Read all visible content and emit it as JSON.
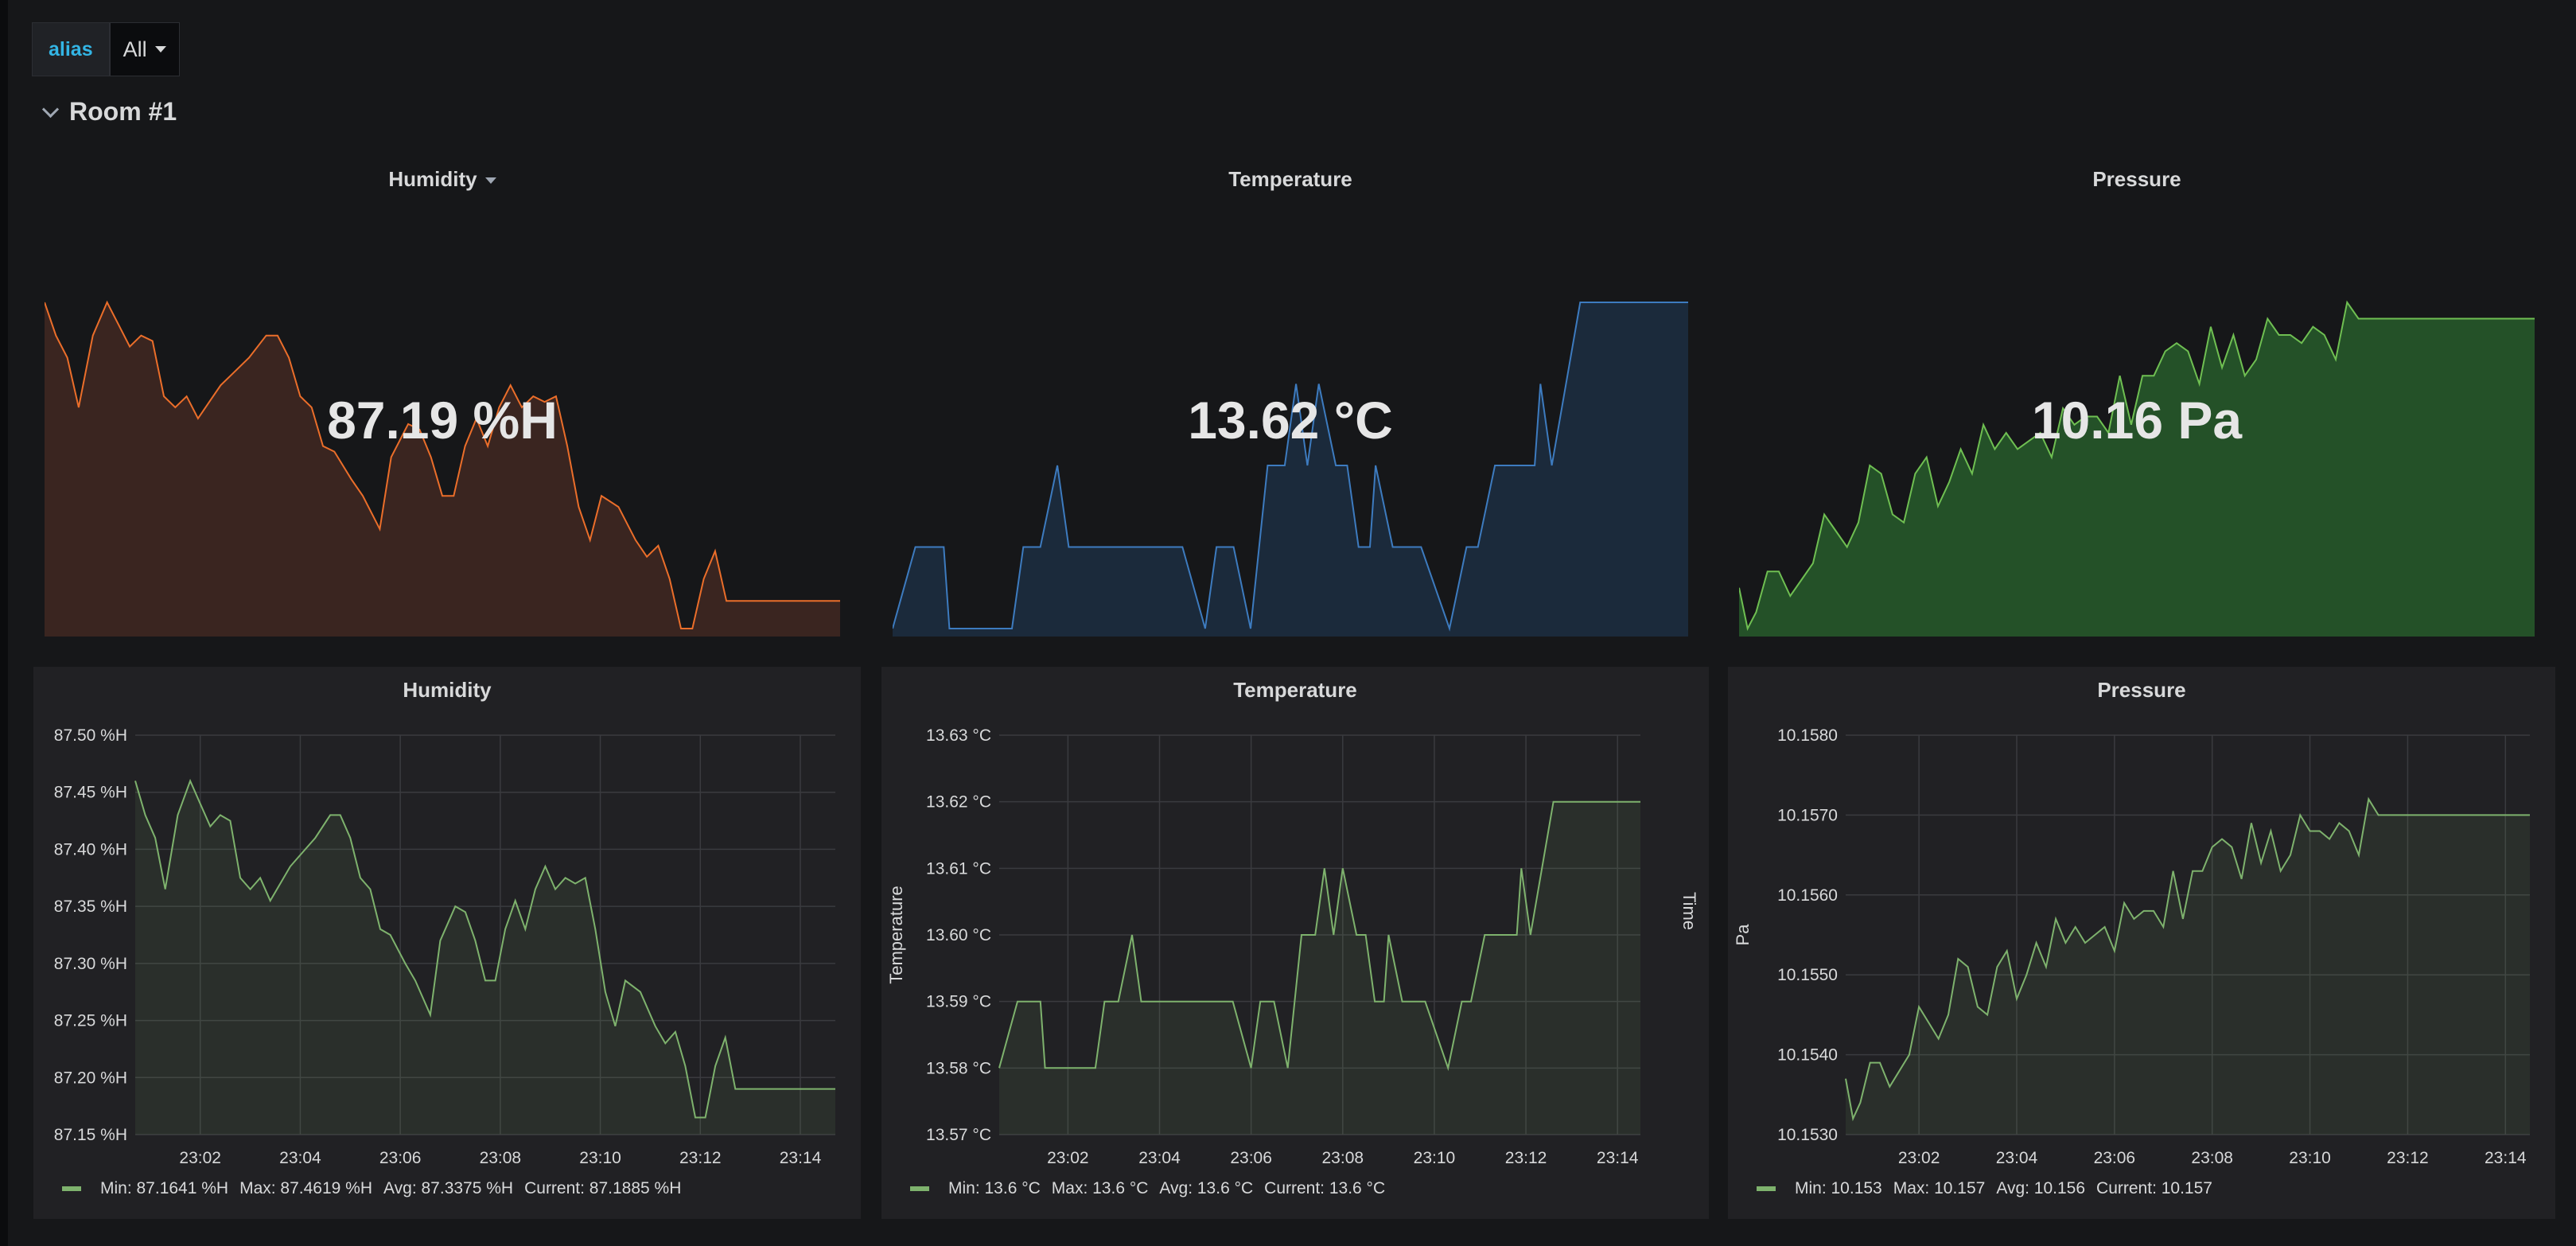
{
  "variables": {
    "label": "alias",
    "value": "All"
  },
  "row": {
    "title": "Room #1"
  },
  "stats": [
    {
      "title": "Humidity",
      "value": "87.19 %H"
    },
    {
      "title": "Temperature",
      "value": "13.62 °C"
    },
    {
      "title": "Pressure",
      "value": "10.16 Pa"
    }
  ],
  "graphs": [
    {
      "title": "Humidity",
      "legend": {
        "min": "Min: 87.1641 %H",
        "max": "Max: 87.4619 %H",
        "avg": "Avg: 87.3375 %H",
        "current": "Current: 87.1885 %H"
      }
    },
    {
      "title": "Temperature",
      "ylabel": "Temperature",
      "ylabel_right": "Time",
      "legend": {
        "min": "Min: 13.6 °C",
        "max": "Max: 13.6 °C",
        "avg": "Avg: 13.6 °C",
        "current": "Current: 13.6 °C"
      }
    },
    {
      "title": "Pressure",
      "ylabel": "Pa",
      "legend": {
        "min": "Min: 10.153",
        "max": "Max: 10.157",
        "avg": "Avg: 10.156",
        "current": "Current: 10.157"
      }
    }
  ],
  "colors": {
    "humidity_spark": "#eb6e2a",
    "humidity_fill": "#3a2520",
    "temperature_spark": "#3d7bbf",
    "temperature_fill": "#1b2a3b",
    "pressure_spark": "#6fbf52",
    "pressure_fill": "#245128",
    "series_line": "#7eb26d"
  },
  "chart_data": [
    {
      "type": "line",
      "title": "Humidity",
      "x_ticks": [
        "23:02",
        "23:04",
        "23:06",
        "23:08",
        "23:10",
        "23:12",
        "23:14"
      ],
      "y_ticks": [
        "87.15 %H",
        "87.20 %H",
        "87.25 %H",
        "87.30 %H",
        "87.35 %H",
        "87.40 %H",
        "87.45 %H",
        "87.50 %H"
      ],
      "ylim": [
        87.15,
        87.5
      ],
      "xlim": [
        0.7,
        14.7
      ],
      "grid": true,
      "series": [
        {
          "x": [
            0.7,
            0.9,
            1.1,
            1.3,
            1.55,
            1.8,
            2.0,
            2.2,
            2.4,
            2.6,
            2.8,
            3.0,
            3.2,
            3.4,
            3.6,
            3.8,
            4.0,
            4.3,
            4.6,
            4.8,
            5.0,
            5.2,
            5.4,
            5.6,
            5.8,
            6.1,
            6.3,
            6.6,
            6.8,
            7.1,
            7.3,
            7.5,
            7.7,
            7.9,
            8.1,
            8.3,
            8.5,
            8.7,
            8.9,
            9.1,
            9.3,
            9.5,
            9.7,
            9.9,
            10.1,
            10.3,
            10.5,
            10.8,
            11.1,
            11.3,
            11.5,
            11.7,
            11.9,
            12.1,
            12.3,
            12.5,
            12.7,
            12.9,
            13.1,
            13.3,
            13.5,
            13.7,
            13.9,
            14.1,
            14.3,
            14.5,
            14.7
          ],
          "y": [
            87.46,
            87.43,
            87.41,
            87.365,
            87.43,
            87.46,
            87.44,
            87.42,
            87.43,
            87.425,
            87.375,
            87.365,
            87.375,
            87.355,
            87.37,
            87.385,
            87.395,
            87.41,
            87.43,
            87.43,
            87.41,
            87.375,
            87.365,
            87.33,
            87.325,
            87.3,
            87.285,
            87.255,
            87.32,
            87.35,
            87.345,
            87.32,
            87.285,
            87.285,
            87.33,
            87.355,
            87.33,
            87.365,
            87.385,
            87.365,
            87.375,
            87.37,
            87.375,
            87.33,
            87.275,
            87.245,
            87.285,
            87.275,
            87.245,
            87.23,
            87.24,
            87.21,
            87.165,
            87.165,
            87.21,
            87.235,
            87.19,
            87.19,
            87.19,
            87.19,
            87.19,
            87.19,
            87.19,
            87.19,
            87.19,
            87.19,
            87.19
          ]
        }
      ],
      "legend_placement": "bottom-left"
    },
    {
      "type": "line",
      "title": "Temperature",
      "ylabel": "Temperature",
      "x_ticks": [
        "23:02",
        "23:04",
        "23:06",
        "23:08",
        "23:10",
        "23:12",
        "23:14"
      ],
      "y_ticks": [
        "13.57 °C",
        "13.58 °C",
        "13.59 °C",
        "13.60 °C",
        "13.61 °C",
        "13.62 °C",
        "13.63 °C"
      ],
      "ylim": [
        13.57,
        13.63
      ],
      "xlim": [
        0.5,
        14.5
      ],
      "grid": true,
      "series": [
        {
          "x": [
            0.5,
            0.7,
            0.9,
            1.4,
            1.5,
            1.9,
            2.6,
            2.8,
            3.1,
            3.4,
            3.6,
            3.8,
            4.0,
            4.3,
            4.6,
            5.0,
            5.3,
            5.6,
            6.0,
            6.2,
            6.5,
            6.8,
            7.1,
            7.4,
            7.6,
            7.8,
            8.0,
            8.3,
            8.5,
            8.7,
            8.9,
            9.0,
            9.3,
            9.5,
            9.8,
            10.3,
            10.6,
            10.8,
            11.1,
            11.4,
            11.8,
            11.9,
            12.1,
            12.6,
            12.8,
            13.1,
            13.4,
            13.7,
            14.0,
            14.5
          ],
          "y": [
            13.58,
            13.585,
            13.59,
            13.59,
            13.58,
            13.58,
            13.58,
            13.59,
            13.59,
            13.6,
            13.59,
            13.59,
            13.59,
            13.59,
            13.59,
            13.59,
            13.59,
            13.59,
            13.58,
            13.59,
            13.59,
            13.58,
            13.6,
            13.6,
            13.61,
            13.6,
            13.61,
            13.6,
            13.6,
            13.59,
            13.59,
            13.6,
            13.59,
            13.59,
            13.59,
            13.58,
            13.59,
            13.59,
            13.6,
            13.6,
            13.6,
            13.61,
            13.6,
            13.62,
            13.62,
            13.62,
            13.62,
            13.62,
            13.62,
            13.62
          ]
        }
      ],
      "legend_placement": "bottom-left"
    },
    {
      "type": "line",
      "title": "Pressure",
      "ylabel": "Pa",
      "x_ticks": [
        "23:02",
        "23:04",
        "23:06",
        "23:08",
        "23:10",
        "23:12",
        "23:14"
      ],
      "y_ticks": [
        "10.1530",
        "10.1540",
        "10.1550",
        "10.1560",
        "10.1570",
        "10.1580"
      ],
      "ylim": [
        10.153,
        10.158
      ],
      "xlim": [
        0.5,
        14.5
      ],
      "grid": true,
      "series": [
        {
          "x": [
            0.5,
            0.65,
            0.8,
            1.0,
            1.2,
            1.4,
            1.6,
            1.8,
            2.0,
            2.2,
            2.4,
            2.6,
            2.8,
            3.0,
            3.2,
            3.4,
            3.6,
            3.8,
            4.0,
            4.2,
            4.4,
            4.6,
            4.8,
            5.0,
            5.2,
            5.4,
            5.6,
            5.8,
            6.0,
            6.2,
            6.4,
            6.6,
            6.8,
            7.0,
            7.2,
            7.4,
            7.6,
            7.8,
            8.0,
            8.2,
            8.4,
            8.6,
            8.8,
            9.0,
            9.2,
            9.4,
            9.6,
            9.8,
            10.0,
            10.2,
            10.4,
            10.6,
            10.8,
            11.0,
            11.2,
            11.4,
            11.6,
            11.8,
            12.0,
            12.2,
            12.4,
            12.6,
            12.8,
            13.0,
            13.2,
            13.4,
            13.6,
            13.8,
            14.0,
            14.2,
            14.4,
            14.5
          ],
          "y": [
            10.1537,
            10.1532,
            10.1534,
            10.1539,
            10.1539,
            10.1536,
            10.1538,
            10.154,
            10.1546,
            10.1544,
            10.1542,
            10.1545,
            10.1552,
            10.1551,
            10.1546,
            10.1545,
            10.1551,
            10.1553,
            10.1547,
            10.155,
            10.1554,
            10.1551,
            10.1557,
            10.1554,
            10.1556,
            10.1554,
            10.1555,
            10.1556,
            10.1553,
            10.1559,
            10.1557,
            10.1558,
            10.1558,
            10.1556,
            10.1563,
            10.1557,
            10.1563,
            10.1563,
            10.1566,
            10.1567,
            10.1566,
            10.1562,
            10.1569,
            10.1564,
            10.1568,
            10.1563,
            10.1565,
            10.157,
            10.1568,
            10.1568,
            10.1567,
            10.1569,
            10.1568,
            10.1565,
            10.1572,
            10.157,
            10.157,
            10.157,
            10.157,
            10.157,
            10.157,
            10.157,
            10.157,
            10.157,
            10.157,
            10.157,
            10.157,
            10.157,
            10.157,
            10.157,
            10.157,
            10.157
          ]
        }
      ],
      "legend_placement": "bottom-left"
    }
  ]
}
